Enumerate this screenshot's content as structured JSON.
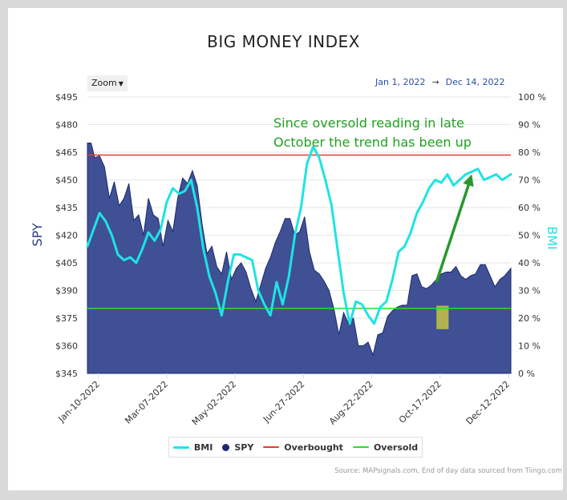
{
  "chart_data": {
    "type": "area",
    "title": "BIG MONEY INDEX",
    "xlabel": "",
    "ylabel_left": "SPY",
    "ylabel_right": "BMI",
    "x_ticks": [
      "Jan-10-2022",
      "Mar-07-2022",
      "May-02-2022",
      "Jun-27-2022",
      "Aug-22-2022",
      "Oct-17-2022",
      "Dec-12-2022"
    ],
    "x_tick_days": [
      9,
      65,
      121,
      177,
      233,
      289,
      345
    ],
    "x_range_days": [
      0,
      347
    ],
    "y_left_ticks": [
      "$495",
      "$480",
      "$465",
      "$450",
      "$435",
      "$420",
      "$405",
      "$390",
      "$375",
      "$360",
      "$345"
    ],
    "y_left_range": [
      345,
      495
    ],
    "y_right_ticks": [
      "100 %",
      "90 %",
      "80 %",
      "70 %",
      "60 %",
      "50 %",
      "40 %",
      "30 %",
      "20 %",
      "10 %",
      "0 %"
    ],
    "y_right_range": [
      0,
      100
    ],
    "grid": true,
    "legend_position": "bottom-center",
    "series": [
      {
        "name": "BMI",
        "axis": "right",
        "color": "#1ee3e3",
        "days": [
          0,
          5,
          10,
          15,
          20,
          25,
          30,
          35,
          40,
          45,
          50,
          55,
          60,
          65,
          70,
          75,
          80,
          85,
          90,
          95,
          100,
          105,
          110,
          115,
          120,
          125,
          130,
          135,
          140,
          145,
          150,
          155,
          160,
          165,
          170,
          175,
          180,
          185,
          190,
          195,
          200,
          205,
          210,
          215,
          220,
          225,
          230,
          235,
          240,
          245,
          250,
          255,
          260,
          265,
          270,
          275,
          280,
          285,
          290,
          295,
          300,
          305,
          310,
          315,
          320,
          325,
          330,
          335,
          340,
          347
        ],
        "values": [
          46,
          52,
          58,
          55,
          50,
          43,
          41,
          42,
          40,
          45,
          51,
          48,
          52,
          62,
          67,
          65,
          66,
          70,
          60,
          45,
          35,
          29,
          21,
          33,
          43,
          43,
          42,
          41,
          30,
          25,
          21,
          33,
          25,
          35,
          50,
          60,
          76,
          82,
          78,
          70,
          61,
          45,
          29,
          18,
          26,
          25,
          21,
          18,
          24,
          26,
          34,
          44,
          46,
          51,
          58,
          62,
          67,
          70,
          69,
          72,
          68,
          70,
          72,
          73,
          74,
          70,
          71,
          72,
          70,
          72
        ]
      },
      {
        "name": "SPY",
        "axis": "left",
        "color": "#2a3d8a",
        "days": [
          0,
          3,
          6,
          10,
          14,
          18,
          22,
          26,
          30,
          34,
          38,
          42,
          46,
          50,
          54,
          58,
          62,
          66,
          70,
          74,
          78,
          82,
          86,
          90,
          94,
          98,
          102,
          106,
          110,
          114,
          118,
          122,
          126,
          130,
          134,
          138,
          142,
          146,
          150,
          154,
          158,
          162,
          166,
          170,
          174,
          178,
          182,
          186,
          190,
          194,
          198,
          202,
          206,
          210,
          214,
          218,
          222,
          226,
          230,
          234,
          238,
          242,
          246,
          250,
          254,
          258,
          262,
          266,
          270,
          274,
          278,
          282,
          286,
          290,
          294,
          298,
          302,
          306,
          310,
          314,
          318,
          322,
          326,
          330,
          334,
          338,
          342,
          347
        ],
        "values": [
          470,
          470,
          462,
          463,
          457,
          440,
          449,
          436,
          440,
          448,
          428,
          431,
          420,
          440,
          431,
          429,
          414,
          428,
          422,
          440,
          451,
          448,
          455,
          447,
          426,
          410,
          414,
          403,
          399,
          411,
          396,
          402,
          405,
          400,
          391,
          384,
          393,
          402,
          408,
          416,
          422,
          429,
          429,
          420,
          422,
          430,
          411,
          401,
          399,
          395,
          390,
          380,
          366,
          378,
          372,
          375,
          360,
          360,
          362,
          355,
          366,
          367,
          376,
          379,
          381,
          382,
          382,
          398,
          399,
          392,
          391,
          393,
          396,
          399,
          400,
          400,
          403,
          398,
          396,
          398,
          399,
          404,
          404,
          398,
          392,
          396,
          398,
          402
        ]
      },
      {
        "name": "Overbought",
        "axis": "right",
        "color": "#e83a2f",
        "value": 79
      },
      {
        "name": "Oversold",
        "axis": "right",
        "color": "#27e027",
        "value": 23.5
      }
    ],
    "annotations": [
      "Since oversold reading in late October the trend has been up"
    ]
  },
  "ui": {
    "zoom_label": "Zoom",
    "date_from": "Jan 1, 2022",
    "date_arrow": "→",
    "date_to": "Dec 14, 2022",
    "legend": [
      "BMI",
      "SPY",
      "Overbought",
      "Oversold"
    ],
    "source": "Source: MAPsignals.com, End of day data sourced from Tiingo.com",
    "annotation_line1": "Since oversold reading in late",
    "annotation_line2": "October the trend has been up"
  },
  "colors": {
    "spy_fill": "#2a3d8a",
    "bmi_line": "#1ee3e3",
    "overbought": "#e83a2f",
    "oversold": "#27e027",
    "arrow": "#27992b",
    "highlight": "#d9d23a",
    "axis_right": "#1ee3e3",
    "axis_left": "#2a3d8a"
  },
  "icons": [
    "chevron-down-icon"
  ]
}
